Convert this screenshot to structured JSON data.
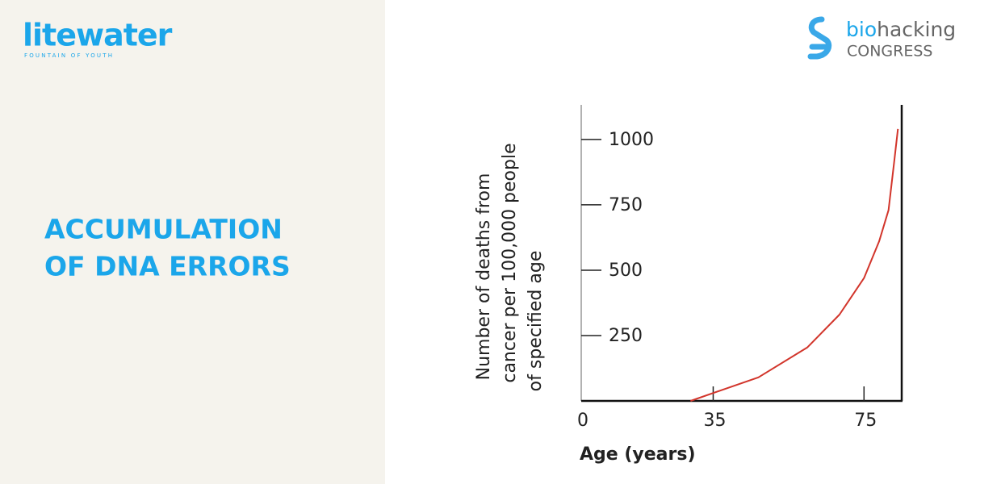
{
  "brand": {
    "name": "litewater",
    "tagline": "FOUNTAIN OF YOUTH"
  },
  "partner": {
    "name_a": "bio",
    "name_b": "hacking",
    "name_c": "CONGRESS"
  },
  "slide": {
    "title_lines": [
      "ACCUMULATION",
      "OF DNA ERRORS"
    ]
  },
  "chart_data": {
    "type": "line",
    "ylabel_lines": [
      "Number of deaths from",
      "cancer per 100,000 people",
      "of specified age"
    ],
    "xlabel": "Age (years)",
    "x": [
      29,
      47,
      60,
      68.5,
      75,
      79,
      81.5,
      83,
      84
    ],
    "values": [
      0,
      90,
      205,
      330,
      470,
      610,
      730,
      915,
      1040
    ],
    "color": "#d2352b",
    "xlim": [
      0,
      85
    ],
    "xticks": [
      0,
      35,
      75
    ],
    "ylim": [
      0,
      1120
    ],
    "yticks": [
      250,
      500,
      750,
      1000
    ],
    "grid": false
  }
}
